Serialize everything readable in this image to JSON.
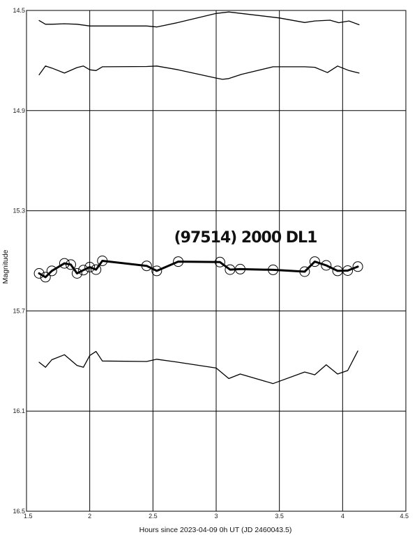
{
  "chart_data": {
    "type": "line",
    "title": "(97514) 2000 DL1",
    "xlabel": "Hours since 2023-04-09 0h UT (JD 2460043.5)",
    "ylabel": "Magnitude",
    "xlim": [
      1.5,
      4.5
    ],
    "ylim": [
      14.5,
      16.5
    ],
    "y_inverted": true,
    "grid": true,
    "x_ticks": [
      "1.5",
      "2",
      "2.5",
      "3",
      "3.5",
      "4",
      "4.5"
    ],
    "y_ticks": [
      "14.5",
      "14.9",
      "15.3",
      "15.7",
      "16.1",
      "16.5"
    ],
    "series": [
      {
        "style": "comparison-line",
        "x": [
          1.6,
          1.65,
          1.7,
          1.8,
          1.9,
          2.0,
          2.1,
          2.45,
          2.53,
          2.7,
          3.0,
          3.1,
          3.5,
          3.7,
          3.78,
          3.9,
          3.97,
          4.05,
          4.13
        ],
        "values": [
          14.54,
          14.555,
          14.555,
          14.553,
          14.555,
          14.562,
          14.562,
          14.562,
          14.566,
          14.548,
          14.512,
          14.506,
          14.53,
          14.548,
          14.542,
          14.539,
          14.549,
          14.542,
          14.557
        ]
      },
      {
        "style": "comparison-line",
        "x": [
          1.6,
          1.65,
          1.7,
          1.8,
          1.9,
          1.95,
          2.0,
          2.05,
          2.1,
          2.45,
          2.53,
          2.7,
          3.0,
          3.05,
          3.1,
          3.2,
          3.45,
          3.7,
          3.78,
          3.88,
          3.96,
          4.05,
          4.13
        ],
        "values": [
          14.757,
          14.722,
          14.73,
          14.75,
          14.728,
          14.722,
          14.737,
          14.74,
          14.725,
          14.724,
          14.722,
          14.737,
          14.77,
          14.775,
          14.772,
          14.755,
          14.725,
          14.725,
          14.727,
          14.748,
          14.722,
          14.74,
          14.75
        ]
      },
      {
        "style": "target",
        "markers": true,
        "x": [
          1.6,
          1.65,
          1.7,
          1.8,
          1.85,
          1.9,
          1.95,
          2.0,
          2.05,
          2.1,
          2.45,
          2.53,
          2.7,
          3.03,
          3.11,
          3.19,
          3.45,
          3.7,
          3.78,
          3.87,
          3.96,
          4.04,
          4.12
        ],
        "values": [
          15.55,
          15.565,
          15.54,
          15.51,
          15.515,
          15.55,
          15.537,
          15.525,
          15.535,
          15.5,
          15.52,
          15.54,
          15.503,
          15.505,
          15.535,
          15.533,
          15.536,
          15.543,
          15.503,
          15.518,
          15.54,
          15.539,
          15.523
        ]
      },
      {
        "style": "comparison-line",
        "x": [
          1.6,
          1.65,
          1.7,
          1.8,
          1.9,
          1.95,
          2.0,
          2.05,
          2.1,
          2.45,
          2.53,
          2.7,
          3.0,
          3.1,
          3.19,
          3.45,
          3.7,
          3.78,
          3.87,
          3.96,
          4.04,
          4.12
        ],
        "values": [
          15.905,
          15.925,
          15.895,
          15.875,
          15.918,
          15.925,
          15.878,
          15.862,
          15.9,
          15.902,
          15.893,
          15.905,
          15.928,
          15.97,
          15.952,
          15.99,
          15.944,
          15.955,
          15.915,
          15.952,
          15.938,
          15.86
        ]
      }
    ]
  }
}
